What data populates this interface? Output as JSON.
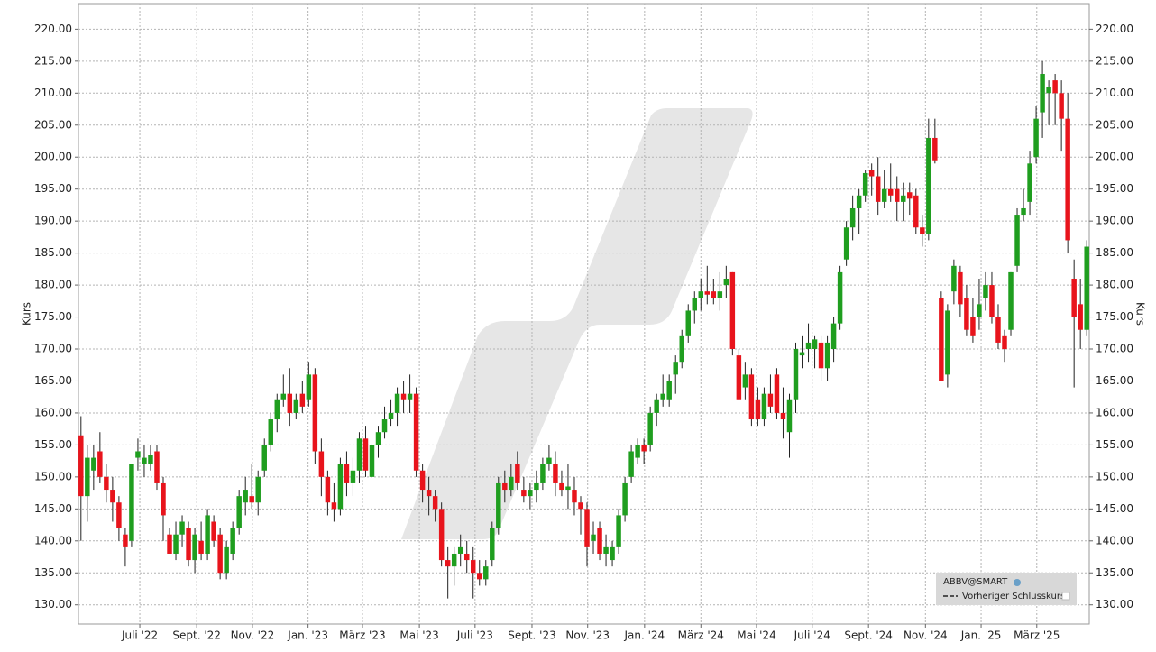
{
  "chart_data": {
    "type": "candlestick",
    "y_label": "Kurs",
    "y2_label": "Kurs",
    "ylim": [
      127,
      224
    ],
    "yticks": [
      {
        "value": 130,
        "label": "130.00"
      },
      {
        "value": 135,
        "label": "135.00"
      },
      {
        "value": 140,
        "label": "140.00"
      },
      {
        "value": 145,
        "label": "145.00"
      },
      {
        "value": 150,
        "label": "150.00"
      },
      {
        "value": 155,
        "label": "155.00"
      },
      {
        "value": 160,
        "label": "160.00"
      },
      {
        "value": 165,
        "label": "165.00"
      },
      {
        "value": 170,
        "label": "170.00"
      },
      {
        "value": 175,
        "label": "175.00"
      },
      {
        "value": 180,
        "label": "180.00"
      },
      {
        "value": 185,
        "label": "185.00"
      },
      {
        "value": 190,
        "label": "190.00"
      },
      {
        "value": 195,
        "label": "195.00"
      },
      {
        "value": 200,
        "label": "200.00"
      },
      {
        "value": 205,
        "label": "205.00"
      },
      {
        "value": 210,
        "label": "210.00"
      },
      {
        "value": 215,
        "label": "215.00"
      },
      {
        "value": 220,
        "label": "220.00"
      }
    ],
    "xlim": [
      -0.4,
      159.4
    ],
    "xticks": [
      {
        "value": 9.3,
        "label": "Juli '22"
      },
      {
        "value": 18.3,
        "label": "Sept. '22"
      },
      {
        "value": 27.1,
        "label": "Nov. '22"
      },
      {
        "value": 35.9,
        "label": "Jan. '23"
      },
      {
        "value": 44.5,
        "label": "März '23"
      },
      {
        "value": 53.5,
        "label": "Mai '23"
      },
      {
        "value": 62.3,
        "label": "Juli '23"
      },
      {
        "value": 71.3,
        "label": "Sept. '23"
      },
      {
        "value": 80.1,
        "label": "Nov. '23"
      },
      {
        "value": 89.1,
        "label": "Jan. '24"
      },
      {
        "value": 98.0,
        "label": "März '24"
      },
      {
        "value": 106.8,
        "label": "Mai '24"
      },
      {
        "value": 115.6,
        "label": "Juli '24"
      },
      {
        "value": 124.5,
        "label": "Sept. '24"
      },
      {
        "value": 133.5,
        "label": "Nov. '24"
      },
      {
        "value": 142.3,
        "label": "Jan. '25"
      },
      {
        "value": 151.1,
        "label": "März '25"
      }
    ],
    "grid": true,
    "up_color": "#1f9e1f",
    "down_color": "#e8141c",
    "legend": {
      "title": "ABBV@SMART",
      "entry": "Vorheriger Schlusskurs"
    },
    "ohlc": [
      [
        156.5,
        159.5,
        140,
        147
      ],
      [
        147,
        155,
        143,
        153
      ],
      [
        151,
        155,
        148,
        153
      ],
      [
        154,
        157,
        149,
        150
      ],
      [
        150,
        152,
        146,
        148
      ],
      [
        148,
        150,
        143,
        146
      ],
      [
        146,
        147,
        140,
        142
      ],
      [
        141,
        142,
        136,
        139
      ],
      [
        140,
        152,
        139,
        152
      ],
      [
        153,
        156,
        151,
        154
      ],
      [
        152,
        155,
        150,
        153
      ],
      [
        152,
        155,
        151,
        153.5
      ],
      [
        154,
        155,
        148,
        149
      ],
      [
        149,
        150,
        140,
        144
      ],
      [
        141,
        142,
        138,
        138
      ],
      [
        138,
        143,
        137,
        141
      ],
      [
        141,
        144,
        139,
        143
      ],
      [
        142,
        143,
        136,
        137
      ],
      [
        137,
        142,
        135,
        141
      ],
      [
        140,
        143,
        137,
        138
      ],
      [
        138,
        145,
        137,
        144
      ],
      [
        143,
        144,
        139,
        140
      ],
      [
        141,
        142,
        134,
        135
      ],
      [
        135,
        140,
        134,
        139
      ],
      [
        138,
        143,
        137,
        142
      ],
      [
        142,
        148,
        141,
        147
      ],
      [
        146,
        150,
        144,
        148
      ],
      [
        147,
        152,
        145,
        146
      ],
      [
        146,
        151,
        144,
        150
      ],
      [
        151,
        156,
        150,
        155
      ],
      [
        155,
        160,
        154,
        159
      ],
      [
        159,
        163,
        157,
        162
      ],
      [
        162,
        166,
        161,
        163
      ],
      [
        163,
        167,
        158,
        160
      ],
      [
        160,
        163,
        159,
        162
      ],
      [
        163,
        165,
        160,
        161
      ],
      [
        162,
        168,
        161,
        166
      ],
      [
        166,
        167,
        152,
        154
      ],
      [
        154,
        156,
        147,
        150
      ],
      [
        150,
        151,
        144,
        146
      ],
      [
        146,
        149,
        143,
        145
      ],
      [
        145,
        153,
        144,
        152
      ],
      [
        152,
        154,
        147,
        149
      ],
      [
        149,
        153,
        147,
        151
      ],
      [
        151,
        157,
        149,
        156
      ],
      [
        156,
        158,
        150,
        151
      ],
      [
        150,
        157,
        149,
        155
      ],
      [
        155,
        158,
        153,
        157
      ],
      [
        157,
        161,
        156,
        159
      ],
      [
        159,
        162,
        158,
        160
      ],
      [
        160,
        164,
        158,
        163
      ],
      [
        163,
        165,
        160,
        162
      ],
      [
        162,
        166,
        160,
        163
      ],
      [
        163,
        164,
        150,
        151
      ],
      [
        151,
        152,
        146,
        148
      ],
      [
        148,
        150,
        144,
        147
      ],
      [
        147,
        148,
        143,
        145
      ],
      [
        145,
        146,
        136,
        137
      ],
      [
        137,
        139,
        131,
        136
      ],
      [
        136,
        139,
        133,
        138
      ],
      [
        138,
        141,
        136,
        139
      ],
      [
        138,
        140,
        135,
        137
      ],
      [
        137,
        139,
        131,
        135
      ],
      [
        135,
        137,
        133,
        134
      ],
      [
        134,
        137,
        133,
        136
      ],
      [
        137,
        143,
        136,
        142
      ],
      [
        142,
        150,
        141,
        149
      ],
      [
        149,
        151,
        146,
        148
      ],
      [
        148,
        152,
        147,
        150
      ],
      [
        152,
        154,
        148,
        149
      ],
      [
        148,
        150,
        146,
        147
      ],
      [
        147,
        149,
        145,
        148
      ],
      [
        148,
        151,
        146,
        149
      ],
      [
        149,
        153,
        148,
        152
      ],
      [
        152,
        155,
        151,
        153
      ],
      [
        152,
        154,
        147,
        149
      ],
      [
        149,
        151,
        147,
        148
      ],
      [
        148,
        152,
        145,
        148.5
      ],
      [
        148,
        150,
        144,
        146
      ],
      [
        146,
        147,
        141,
        145
      ],
      [
        145,
        146,
        136,
        139
      ],
      [
        140,
        143,
        138,
        141
      ],
      [
        142,
        143,
        137,
        138
      ],
      [
        138,
        141,
        136,
        139
      ],
      [
        137,
        140,
        136,
        139
      ],
      [
        139,
        145,
        138,
        144
      ],
      [
        144,
        150,
        143,
        149
      ],
      [
        150,
        155,
        149,
        154
      ],
      [
        153,
        156,
        152,
        155
      ],
      [
        155,
        156,
        152,
        154
      ],
      [
        155,
        161,
        154,
        160
      ],
      [
        160,
        163,
        158,
        162
      ],
      [
        162,
        166,
        161,
        163
      ],
      [
        162,
        166,
        161,
        165
      ],
      [
        166,
        169,
        163,
        168
      ],
      [
        168,
        173,
        167,
        172
      ],
      [
        172,
        177,
        171,
        176
      ],
      [
        176,
        179,
        174,
        178
      ],
      [
        178,
        181,
        176,
        179
      ],
      [
        179,
        183,
        177,
        178.5
      ],
      [
        179,
        181,
        177,
        178
      ],
      [
        178,
        182,
        176,
        179
      ],
      [
        180,
        183,
        178,
        181
      ],
      [
        182,
        182,
        169,
        170
      ],
      [
        169,
        170,
        162,
        162
      ],
      [
        164,
        168,
        162,
        166
      ],
      [
        166,
        167,
        158,
        159
      ],
      [
        162,
        164,
        158,
        159
      ],
      [
        159,
        164,
        158,
        163
      ],
      [
        163,
        166,
        160,
        161
      ],
      [
        166,
        167,
        159,
        160
      ],
      [
        160,
        164,
        156,
        159
      ],
      [
        157,
        163,
        153,
        162
      ],
      [
        162,
        171,
        160,
        170
      ],
      [
        169,
        172,
        167,
        169.5
      ],
      [
        170,
        174,
        168,
        171
      ],
      [
        170,
        172,
        167,
        171.5
      ],
      [
        171,
        172,
        165,
        167
      ],
      [
        167,
        172,
        165,
        171
      ],
      [
        170,
        175,
        168,
        174
      ],
      [
        174,
        183,
        173,
        182
      ],
      [
        184,
        190,
        183,
        189
      ],
      [
        189,
        194,
        187,
        192
      ],
      [
        192,
        195,
        188,
        194
      ],
      [
        194,
        198,
        193,
        197.5
      ],
      [
        198,
        199,
        194,
        197
      ],
      [
        197,
        200,
        191,
        193
      ],
      [
        193,
        198,
        192,
        195
      ],
      [
        195,
        199,
        193,
        194
      ],
      [
        195,
        197,
        190,
        193
      ],
      [
        193,
        196,
        190,
        194
      ],
      [
        194.5,
        196,
        191,
        193.5
      ],
      [
        194,
        195,
        188,
        189
      ],
      [
        189,
        191,
        186,
        188
      ],
      [
        188,
        206,
        187,
        203
      ],
      [
        203,
        206,
        199,
        199.5
      ],
      [
        178,
        179,
        165,
        165
      ],
      [
        166,
        177,
        164,
        176
      ],
      [
        179,
        184,
        177,
        183
      ],
      [
        182,
        183,
        175,
        177
      ],
      [
        178,
        180,
        172,
        173
      ],
      [
        175,
        178,
        171,
        172
      ],
      [
        175,
        181,
        173,
        177
      ],
      [
        178,
        182,
        176,
        180
      ],
      [
        180,
        182,
        174,
        175
      ],
      [
        175,
        177,
        170,
        171
      ],
      [
        172,
        173,
        168,
        170
      ],
      [
        173,
        182,
        172,
        182
      ],
      [
        183,
        192,
        182,
        191
      ],
      [
        191,
        195,
        190,
        192
      ],
      [
        193,
        201,
        191,
        199
      ],
      [
        200,
        208,
        199,
        206
      ],
      [
        207,
        215,
        203,
        213
      ],
      [
        210,
        212,
        205,
        211
      ],
      [
        212,
        213,
        205,
        210
      ],
      [
        210,
        212,
        201,
        206
      ],
      [
        206,
        210,
        185,
        187
      ],
      [
        181,
        184,
        164,
        175
      ],
      [
        177,
        181,
        170,
        173
      ],
      [
        173,
        187,
        172,
        186
      ]
    ]
  }
}
